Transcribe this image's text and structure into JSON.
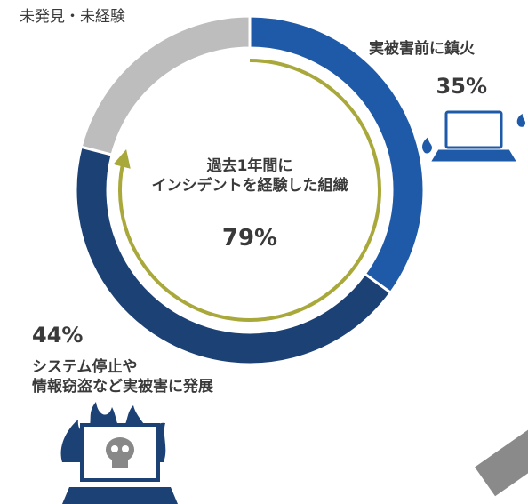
{
  "chart_data": {
    "type": "donut",
    "categories": [
      "実被害前に鎮火",
      "システム停止や\n情報窃盗など実被害に発展",
      "未発見・未経験"
    ],
    "values": [
      35,
      44,
      21
    ],
    "value_labels": [
      "35%",
      "44%",
      null
    ],
    "colors": [
      "#1f5aa8",
      "#1b4175",
      "#bdbdbd"
    ],
    "center": {
      "label": "過去1年間に\nインシデントを経験した組織",
      "value": 79,
      "value_label": "79%",
      "color": "#a9a83b"
    }
  }
}
